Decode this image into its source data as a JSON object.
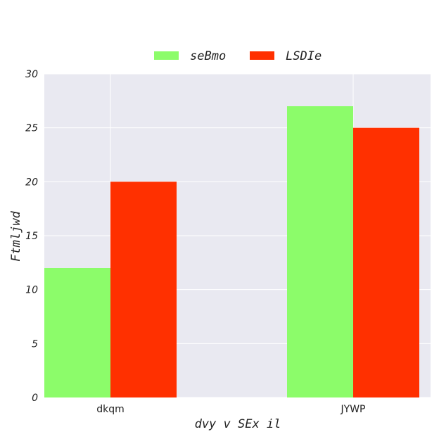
{
  "chart_data": {
    "type": "bar",
    "categories": [
      "dkqm",
      "JYWP"
    ],
    "series": [
      {
        "name": "seBmo",
        "values": [
          12,
          27
        ],
        "color": "#8cfc6a"
      },
      {
        "name": "LSDIe",
        "values": [
          20,
          25
        ],
        "color": "#ff3000"
      }
    ],
    "xlabel": "dvy v  SEx il",
    "ylabel": "Ftmljwd",
    "ylim": [
      0,
      30
    ],
    "yticks": [
      0,
      5,
      10,
      15,
      20,
      25,
      30
    ],
    "grid": true,
    "legend_position": "top-center",
    "plot_background": "#e9e9f1",
    "grid_color": "#ffffff"
  }
}
